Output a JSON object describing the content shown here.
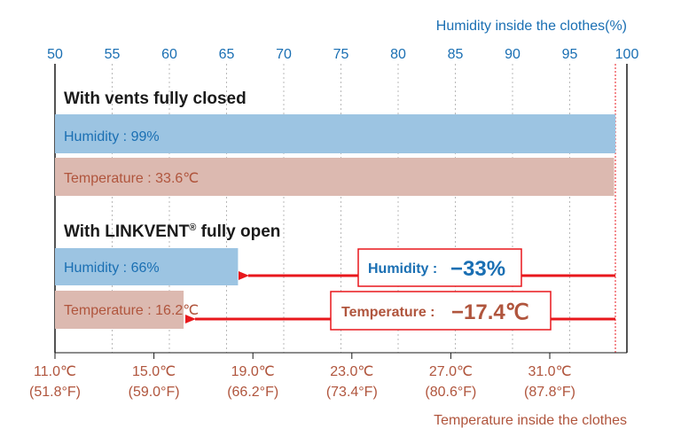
{
  "colors": {
    "humidity_bar": "#9cc4e2",
    "temperature_bar": "#dcb9b0",
    "humidity_text": "#1a6fb3",
    "temperature_text": "#b0553d",
    "arrow": "#e8171c",
    "grid": "#b8b8b8"
  },
  "chart_data": {
    "type": "bar",
    "orientation": "horizontal",
    "top_axis": {
      "label": "Humidity inside the clothes(%)",
      "ticks": [
        "50",
        "55",
        "60",
        "65",
        "70",
        "75",
        "80",
        "85",
        "90",
        "95",
        "100"
      ],
      "range": [
        50,
        100
      ]
    },
    "bottom_axis": {
      "label": "Temperature inside the clothes",
      "ticks": [
        {
          "c": "11.0℃",
          "f": "(51.8°F)"
        },
        {
          "c": "15.0℃",
          "f": "(59.0°F)"
        },
        {
          "c": "19.0℃",
          "f": "(66.2°F)"
        },
        {
          "c": "23.0℃",
          "f": "(73.4°F)"
        },
        {
          "c": "27.0℃",
          "f": "(80.6°F)"
        },
        {
          "c": "31.0℃",
          "f": "(87.8°F)"
        }
      ],
      "range": [
        11.0,
        35.0
      ]
    },
    "groups": [
      {
        "title": "With vents fully closed",
        "humidity": {
          "label": "Humidity : 99%",
          "value": 99
        },
        "temperature": {
          "label": "Temperature : 33.6℃",
          "value": 33.6
        }
      },
      {
        "title": "With LINKVENT",
        "title_mark": "®",
        "title_tail": " fully open",
        "humidity": {
          "label": "Humidity : 66%",
          "value": 66
        },
        "temperature": {
          "label": "Temperature : 16.2℃",
          "value": 16.2
        }
      }
    ],
    "annotations": {
      "humidity": {
        "label": "Humidity :",
        "value": "−33%"
      },
      "temperature": {
        "label": "Temperature :",
        "value": "−17.4℃"
      }
    }
  }
}
